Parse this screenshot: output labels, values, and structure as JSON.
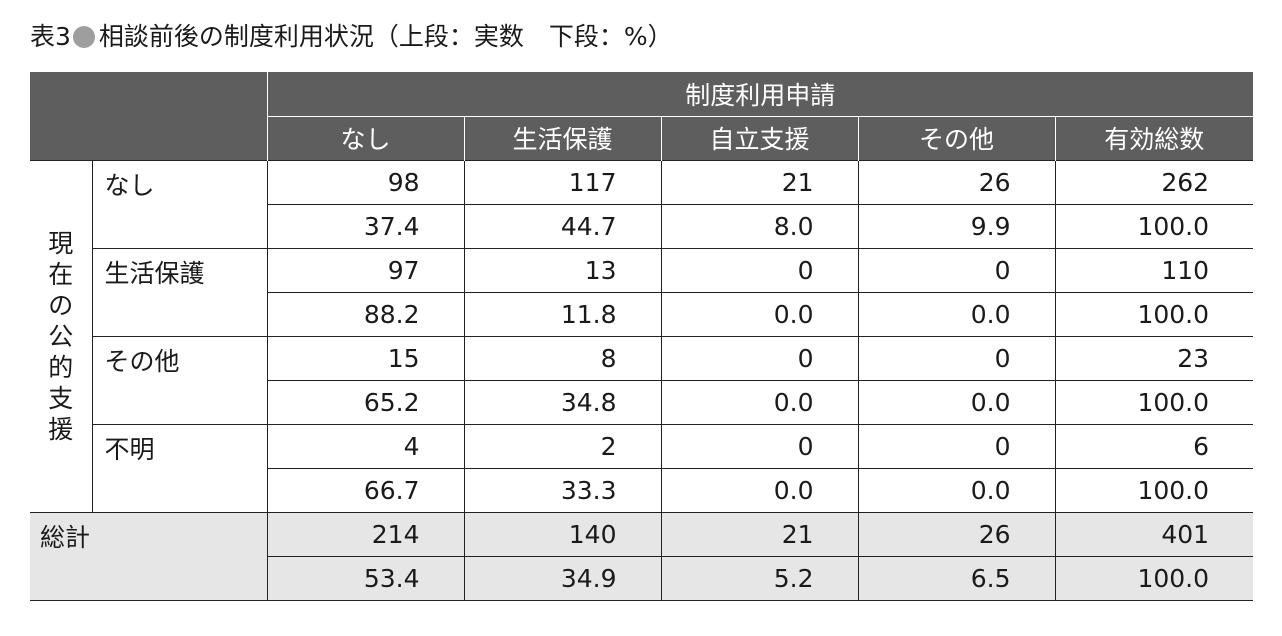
{
  "title": {
    "prefix": "表3",
    "text": "相談前後の制度利用状況（上段：実数　下段：%）"
  },
  "header": {
    "group_label": "制度利用申請",
    "columns": [
      "なし",
      "生活保護",
      "自立支援",
      "その他",
      "有効総数"
    ]
  },
  "side_label": "現在の公的支援",
  "rows": [
    {
      "label": "なし",
      "counts": [
        "98",
        "117",
        "21",
        "26",
        "262"
      ],
      "percents": [
        "37.4",
        "44.7",
        "8.0",
        "9.9",
        "100.0"
      ]
    },
    {
      "label": "生活保護",
      "counts": [
        "97",
        "13",
        "0",
        "0",
        "110"
      ],
      "percents": [
        "88.2",
        "11.8",
        "0.0",
        "0.0",
        "100.0"
      ]
    },
    {
      "label": "その他",
      "counts": [
        "15",
        "8",
        "0",
        "0",
        "23"
      ],
      "percents": [
        "65.2",
        "34.8",
        "0.0",
        "0.0",
        "100.0"
      ]
    },
    {
      "label": "不明",
      "counts": [
        "4",
        "2",
        "0",
        "0",
        "6"
      ],
      "percents": [
        "66.7",
        "33.3",
        "0.0",
        "0.0",
        "100.0"
      ]
    }
  ],
  "total": {
    "label": "総計",
    "counts": [
      "214",
      "140",
      "21",
      "26",
      "401"
    ],
    "percents": [
      "53.4",
      "34.9",
      "5.2",
      "6.5",
      "100.0"
    ]
  },
  "colors": {
    "header_bg": "#5e5e5e",
    "total_bg": "#e6e6e6",
    "bullet": "#9e9e9e"
  }
}
